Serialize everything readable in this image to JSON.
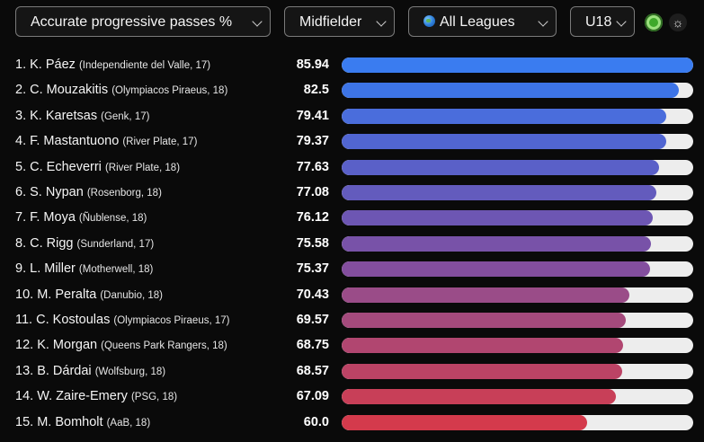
{
  "filters": {
    "metric": "Accurate progressive passes %",
    "position": "Midfielder",
    "league": "All Leagues",
    "age_group": "U18"
  },
  "chart_data": {
    "type": "bar",
    "xlim": [
      0,
      86
    ],
    "rows": [
      {
        "rank": "1.",
        "name": "K. Páez",
        "club": "(Independiente del Valle, 17)",
        "value": "85.94",
        "num": 85.94,
        "color": "#3a7cf0"
      },
      {
        "rank": "2.",
        "name": "C. Mouzakitis",
        "club": "(Olympiacos Piraeus, 18)",
        "value": "82.5",
        "num": 82.5,
        "color": "#3d74e6"
      },
      {
        "rank": "3.",
        "name": "K. Karetsas",
        "club": "(Genk, 17)",
        "value": "79.41",
        "num": 79.41,
        "color": "#4a6ddc"
      },
      {
        "rank": "4.",
        "name": "F. Mastantuono",
        "club": "(River Plate, 17)",
        "value": "79.37",
        "num": 79.37,
        "color": "#5166d2"
      },
      {
        "rank": "5.",
        "name": "C. Echeverri",
        "club": "(River Plate, 18)",
        "value": "77.63",
        "num": 77.63,
        "color": "#5a60c8"
      },
      {
        "rank": "6.",
        "name": "S. Nypan",
        "club": "(Rosenborg, 18)",
        "value": "77.08",
        "num": 77.08,
        "color": "#635bbd"
      },
      {
        "rank": "7.",
        "name": "F. Moya",
        "club": "(Ñublense, 18)",
        "value": "76.12",
        "num": 76.12,
        "color": "#6d56b3"
      },
      {
        "rank": "8.",
        "name": "C. Rigg",
        "club": "(Sunderland, 17)",
        "value": "75.58",
        "num": 75.58,
        "color": "#7852a8"
      },
      {
        "rank": "9.",
        "name": "L. Miller",
        "club": "(Motherwell, 18)",
        "value": "75.37",
        "num": 75.37,
        "color": "#834e9e"
      },
      {
        "rank": "10.",
        "name": "M. Peralta",
        "club": "(Danubio, 18)",
        "value": "70.43",
        "num": 70.43,
        "color": "#9a4c88"
      },
      {
        "rank": "11.",
        "name": "C. Kostoulas",
        "club": "(Olympiacos Piraeus, 17)",
        "value": "69.57",
        "num": 69.57,
        "color": "#a44a7c"
      },
      {
        "rank": "12.",
        "name": "K. Morgan",
        "club": "(Queens Park Rangers, 18)",
        "value": "68.75",
        "num": 68.75,
        "color": "#b14670"
      },
      {
        "rank": "13.",
        "name": "B. Dárdai",
        "club": "(Wolfsburg, 18)",
        "value": "68.57",
        "num": 68.57,
        "color": "#bc4365"
      },
      {
        "rank": "14.",
        "name": "W. Zaire-Emery",
        "club": "(PSG, 18)",
        "value": "67.09",
        "num": 67.09,
        "color": "#c83f58"
      },
      {
        "rank": "15.",
        "name": "M. Bomholt",
        "club": "(AaB, 18)",
        "value": "60.0",
        "num": 60.0,
        "color": "#d43a4c"
      }
    ]
  }
}
